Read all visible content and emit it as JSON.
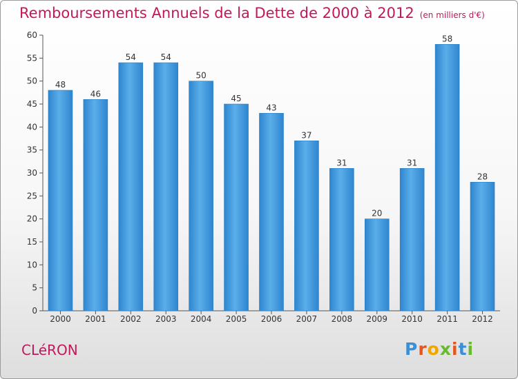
{
  "chart_data": {
    "type": "bar",
    "title": "Remboursements Annuels de la Dette de 2000 à 2012",
    "subtitle": "(en milliers d'€)",
    "categories": [
      "2000",
      "2001",
      "2002",
      "2003",
      "2004",
      "2005",
      "2006",
      "2007",
      "2008",
      "2009",
      "2010",
      "2011",
      "2012"
    ],
    "values": [
      48,
      46,
      54,
      54,
      50,
      45,
      43,
      37,
      31,
      20,
      31,
      58,
      28
    ],
    "ylim": [
      0,
      60
    ],
    "yticks": [
      0,
      5,
      10,
      15,
      20,
      25,
      30,
      35,
      40,
      45,
      50,
      55,
      60
    ],
    "grid": false,
    "bar_color": "#3b93d9",
    "title_color": "#c2185b"
  },
  "footer": {
    "location": "CLéRON",
    "logo": [
      "P",
      "r",
      "o",
      "x",
      "i",
      "t",
      "i"
    ],
    "logo_colors": [
      "#3a8fd6",
      "#e6551e",
      "#f2a400",
      "#69b92e",
      "#e6551e",
      "#3a8fd6",
      "#69b92e"
    ]
  }
}
